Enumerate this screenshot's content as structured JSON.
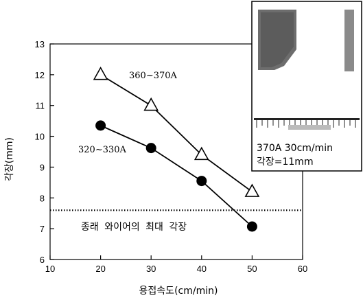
{
  "chart_data": {
    "type": "line",
    "xlabel": "용접속도(cm/min)",
    "ylabel": "각장(mm)",
    "xlim": [
      10,
      60
    ],
    "ylim": [
      6,
      13
    ],
    "xticks": [
      10,
      20,
      30,
      40,
      50,
      60
    ],
    "yticks": [
      6,
      7,
      8,
      9,
      10,
      11,
      12,
      13
    ],
    "grid": false,
    "series": [
      {
        "name": "360~370A",
        "marker": "open-triangle",
        "x": [
          20,
          30,
          40,
          50
        ],
        "y": [
          12.0,
          11.0,
          9.4,
          8.2
        ]
      },
      {
        "name": "320~330A",
        "marker": "filled-circle",
        "x": [
          20,
          30,
          40,
          50
        ],
        "y": [
          10.35,
          9.62,
          8.55,
          7.07
        ]
      }
    ],
    "reference_line": {
      "y": 7.6,
      "style": "dotted",
      "label": "종래 와이어의 최대 각장"
    },
    "inset": {
      "line1": "370A 30cm/min",
      "line2": "각장=11mm"
    }
  }
}
